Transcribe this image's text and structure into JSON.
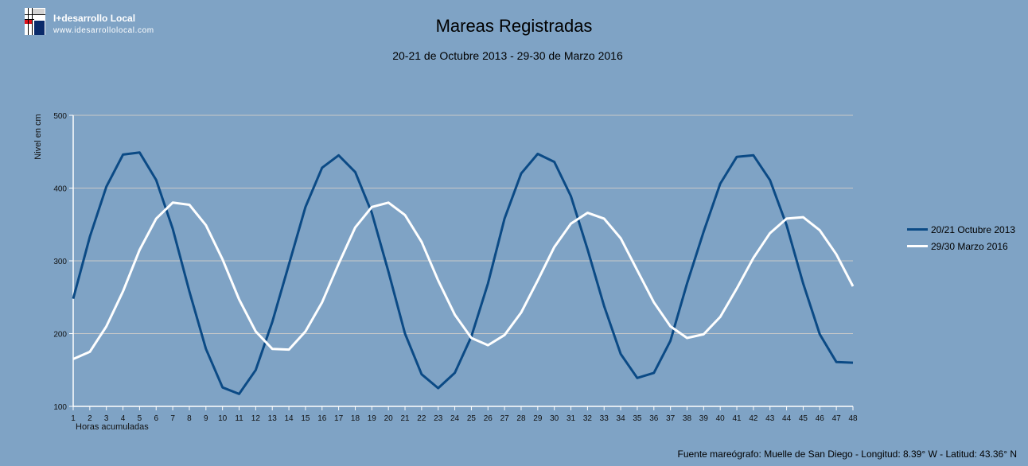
{
  "brand": {
    "name": "I+desarrollo Local",
    "url": "www.idesarrollolocal.com",
    "logo_icon": "idesarrollo-logo-icon"
  },
  "header": {
    "title": "Mareas Registradas",
    "subtitle": "20-21 de Octubre 2013 - 29-30 de Marzo 2016"
  },
  "footer": {
    "source": "Fuente mareógrafo: Muelle de San Diego - Longitud: 8.39° W - Latitud: 43.36° N"
  },
  "colors": {
    "background": "#7fa3c5",
    "series_1": "#0b4a85",
    "series_2": "#ffffff",
    "gridline": "#c8c8c8",
    "axis": "#ffffff"
  },
  "chart_data": {
    "type": "line",
    "title": "Mareas Registradas",
    "subtitle": "20-21 de Octubre 2013 - 29-30 de Marzo 2016",
    "xlabel": "Horas acumuladas",
    "ylabel": "Nivel en cm",
    "ylim": [
      100,
      500
    ],
    "yticks": [
      100,
      200,
      300,
      400,
      500
    ],
    "grid": true,
    "legend_position": "right",
    "x": [
      1,
      2,
      3,
      4,
      5,
      6,
      7,
      8,
      9,
      10,
      11,
      12,
      13,
      14,
      15,
      16,
      17,
      18,
      19,
      20,
      21,
      22,
      23,
      24,
      25,
      26,
      27,
      28,
      29,
      30,
      31,
      32,
      33,
      34,
      35,
      36,
      37,
      38,
      39,
      40,
      41,
      42,
      43,
      44,
      45,
      46,
      47,
      48
    ],
    "series": [
      {
        "name": "20/21 Octubre 2013",
        "color": "#0b4a85",
        "values": [
          248,
          333,
          402,
          446,
          449,
          411,
          344,
          258,
          179,
          126,
          117,
          150,
          216,
          295,
          374,
          428,
          445,
          422,
          366,
          285,
          200,
          144,
          125,
          146,
          196,
          269,
          358,
          420,
          447,
          436,
          389,
          316,
          238,
          172,
          139,
          146,
          190,
          269,
          340,
          406,
          443,
          445,
          411,
          349,
          269,
          199,
          161,
          160
        ]
      },
      {
        "name": "29/30 Marzo 2016",
        "color": "#ffffff",
        "values": [
          165,
          175,
          210,
          258,
          315,
          358,
          380,
          377,
          349,
          302,
          247,
          203,
          179,
          178,
          203,
          243,
          296,
          346,
          374,
          380,
          363,
          326,
          273,
          226,
          194,
          184,
          198,
          229,
          273,
          319,
          351,
          366,
          358,
          331,
          287,
          243,
          210,
          194,
          199,
          223,
          262,
          304,
          338,
          358,
          360,
          342,
          309,
          265
        ]
      }
    ]
  }
}
